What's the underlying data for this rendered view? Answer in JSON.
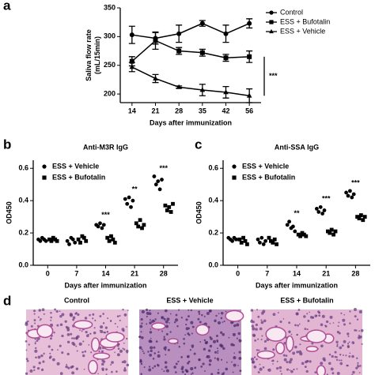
{
  "panel_labels": [
    "a",
    "b",
    "c",
    "d"
  ],
  "image_labels": [
    "Control",
    "ESS + Vehicle",
    "ESS + Bufotalin"
  ],
  "chart_data": [
    {
      "type": "line",
      "xlabel": "Days after immunization",
      "ylabel": [
        "Saliva flow rate",
        "(mL/15min)"
      ],
      "categories": [
        "14",
        "21",
        "28",
        "35",
        "42",
        "56"
      ],
      "ylim": [
        185,
        350
      ],
      "yticks": [
        200,
        250,
        300,
        350
      ],
      "legend": "top-right",
      "series": [
        {
          "name": "Control",
          "color": "#000000",
          "marker": "circle",
          "values": [
            303,
            297,
            305,
            323,
            305,
            323
          ],
          "errors": [
            15,
            10,
            15,
            5,
            15,
            8
          ]
        },
        {
          "name": "ESS + Bufotalin",
          "color": "#000000",
          "marker": "square",
          "values": [
            257,
            293,
            275,
            272,
            263,
            265
          ],
          "errors": [
            8,
            15,
            6,
            6,
            6,
            10
          ]
        },
        {
          "name": "ESS + Vehicle",
          "color": "#000000",
          "marker": "triangle",
          "values": [
            247,
            227,
            212,
            207,
            203,
            197
          ],
          "errors": [
            8,
            7,
            2,
            10,
            10,
            12
          ]
        }
      ],
      "annotation": "***"
    },
    {
      "type": "strip",
      "title": "Anti-M3R IgG",
      "xlabel": "Days after immunization",
      "ylabel": "OD450",
      "categories": [
        "0",
        "7",
        "14",
        "21",
        "28"
      ],
      "ylim": [
        0,
        0.65
      ],
      "yticks": [
        {
          "value": 0,
          "label": "0.0"
        },
        {
          "value": 0.2,
          "label": "0.2"
        },
        {
          "value": 0.4,
          "label": "0.4"
        },
        {
          "value": 0.6,
          "label": "0.6"
        }
      ],
      "legend": "top-left",
      "series": [
        {
          "name": "ESS + Vehicle",
          "color": "#000000",
          "marker": "circle",
          "values": [
            [
              0.16,
              0.15,
              0.17,
              0.16,
              0.15
            ],
            [
              0.15,
              0.13,
              0.17,
              0.16,
              0.14
            ],
            [
              0.25,
              0.24,
              0.26,
              0.23,
              0.25
            ],
            [
              0.41,
              0.38,
              0.42,
              0.36,
              0.4
            ],
            [
              0.55,
              0.5,
              0.52,
              0.47,
              0.53
            ]
          ]
        },
        {
          "name": "ESS + Bufotalin",
          "color": "#000000",
          "marker": "square",
          "values": [
            [
              0.16,
              0.15,
              0.17,
              0.16,
              0.15
            ],
            [
              0.16,
              0.14,
              0.18,
              0.17,
              0.15
            ],
            [
              0.17,
              0.15,
              0.18,
              0.16,
              0.14
            ],
            [
              0.26,
              0.24,
              0.28,
              0.23,
              0.25
            ],
            [
              0.37,
              0.34,
              0.36,
              0.33,
              0.38
            ]
          ]
        }
      ],
      "annotations": [
        null,
        null,
        "***",
        "**",
        "***"
      ]
    },
    {
      "type": "strip",
      "title": "Anti-SSA IgG",
      "xlabel": "Days after immunization",
      "ylabel": "OD450",
      "categories": [
        "0",
        "7",
        "14",
        "21",
        "28"
      ],
      "ylim": [
        0,
        0.65
      ],
      "yticks": [
        {
          "value": 0,
          "label": "0.0"
        },
        {
          "value": 0.2,
          "label": "0.2"
        },
        {
          "value": 0.4,
          "label": "0.4"
        },
        {
          "value": 0.6,
          "label": "0.6"
        }
      ],
      "legend": "top-left",
      "series": [
        {
          "name": "ESS + Vehicle",
          "color": "#000000",
          "marker": "circle",
          "values": [
            [
              0.17,
              0.16,
              0.15,
              0.17,
              0.16
            ],
            [
              0.16,
              0.14,
              0.17,
              0.13,
              0.15
            ],
            [
              0.25,
              0.27,
              0.23,
              0.24,
              0.21
            ],
            [
              0.35,
              0.33,
              0.36,
              0.32,
              0.34
            ],
            [
              0.45,
              0.43,
              0.46,
              0.42,
              0.44
            ]
          ]
        },
        {
          "name": "ESS + Bufotalin",
          "color": "#000000",
          "marker": "square",
          "values": [
            [
              0.16,
              0.14,
              0.17,
              0.15,
              0.13
            ],
            [
              0.17,
              0.15,
              0.14,
              0.16,
              0.13
            ],
            [
              0.19,
              0.18,
              0.2,
              0.19,
              0.18
            ],
            [
              0.21,
              0.2,
              0.22,
              0.19,
              0.21
            ],
            [
              0.3,
              0.29,
              0.31,
              0.28,
              0.3
            ]
          ]
        }
      ],
      "annotations": [
        null,
        null,
        "**",
        "***",
        "***"
      ]
    }
  ]
}
